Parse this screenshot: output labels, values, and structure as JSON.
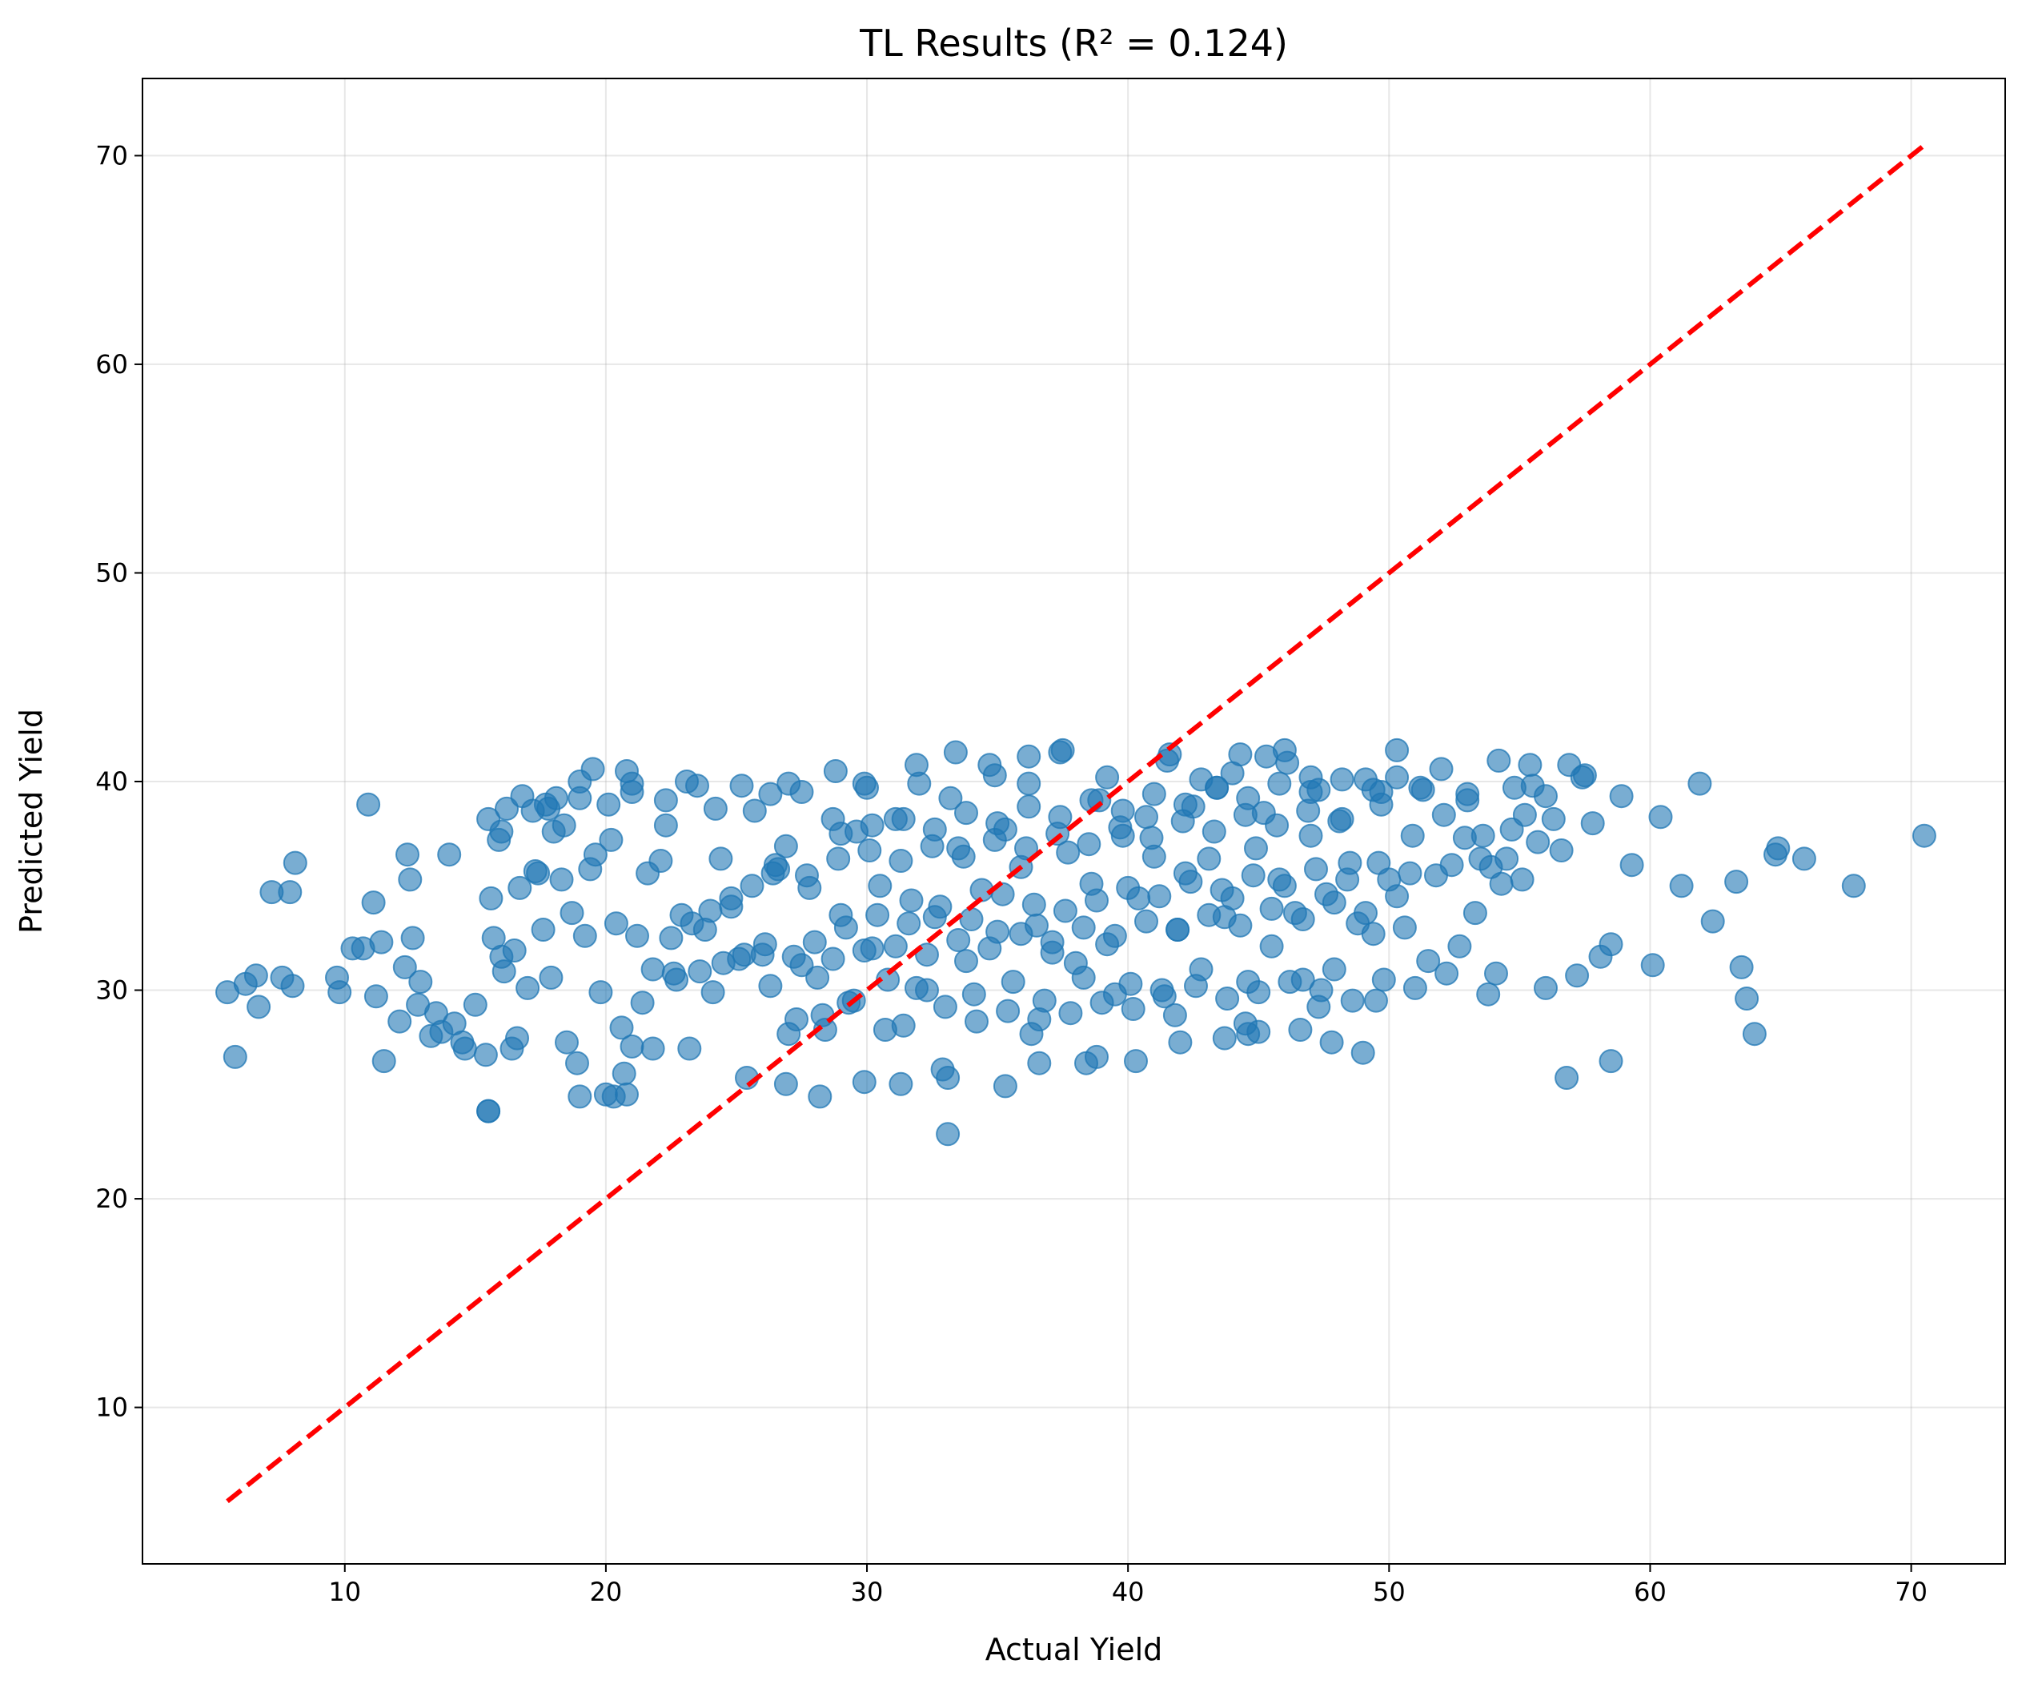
{
  "chart_data": {
    "type": "scatter",
    "title": "TL  Results (R² = 0.124)",
    "xlabel": "Actual Yield",
    "ylabel": "Predicted Yield",
    "xlim": [
      2.25,
      73.6
    ],
    "ylim": [
      2.5,
      73.7
    ],
    "xticks": [
      10,
      20,
      30,
      40,
      50,
      60,
      70
    ],
    "yticks": [
      10,
      20,
      30,
      40,
      50,
      60,
      70
    ],
    "grid": true,
    "colors": {
      "points": "#1f77b4",
      "reference_line": "#ff0000"
    },
    "reference_line": {
      "x": [
        5.5,
        70.5
      ],
      "y": [
        5.5,
        70.5
      ],
      "style": "dashed"
    },
    "series": [
      {
        "marker": "circle",
        "x": [
          5.5,
          5.8,
          6.2,
          6.6,
          7.2,
          7.6,
          7.9,
          8.0,
          8.1,
          6.7,
          9.7,
          9.8,
          10.3,
          10.7,
          10.9,
          11.1,
          11.2,
          11.4,
          11.5,
          12.1,
          12.3,
          12.4,
          12.5,
          12.6,
          12.8,
          12.9,
          13.3,
          13.5,
          13.7,
          14.0,
          14.2,
          14.5,
          14.6,
          15.0,
          15.4,
          15.5,
          15.6,
          15.7,
          15.9,
          16.0,
          16.1,
          16.2,
          16.4,
          16.5,
          16.6,
          16.7,
          17.0,
          17.2,
          17.4,
          17.6,
          17.7,
          17.9,
          18.0,
          18.1,
          18.3,
          18.5,
          18.7,
          18.9,
          19.0,
          19.2,
          19.4,
          19.6,
          19.8,
          20.0,
          20.2,
          20.4,
          20.6,
          20.8,
          21.0,
          21.2,
          21.4,
          21.6,
          21.8,
          22.1,
          22.3,
          22.6,
          22.9,
          23.2,
          23.5,
          23.8,
          24.1,
          24.4,
          24.8,
          25.1,
          25.4,
          25.7,
          26.0,
          26.3,
          26.6,
          26.9,
          27.2,
          27.5,
          27.8,
          28.1,
          28.4,
          28.7,
          29.0,
          29.3,
          29.6,
          29.9,
          30.2,
          30.5,
          30.8,
          31.1,
          31.4,
          31.7,
          32.0,
          32.3,
          32.6,
          32.9,
          33.2,
          33.5,
          33.8,
          34.1,
          34.4,
          34.7,
          35.0,
          35.3,
          35.6,
          35.9,
          36.2,
          36.5,
          36.8,
          37.1,
          37.4,
          37.7,
          38.0,
          38.3,
          38.6,
          38.9,
          39.2,
          39.5,
          39.8,
          40.1,
          40.4,
          40.7,
          41.0,
          41.3,
          41.6,
          41.9,
          42.2,
          42.5,
          42.8,
          43.1,
          43.4,
          43.7,
          44.0,
          44.3,
          44.6,
          44.9,
          45.2,
          45.5,
          45.8,
          46.1,
          46.4,
          46.7,
          47.0,
          47.3,
          47.6,
          47.9,
          48.2,
          48.5,
          48.8,
          49.1,
          49.4,
          49.7,
          50.0,
          50.3,
          50.6,
          50.9,
          51.2,
          51.5,
          51.8,
          52.1,
          52.4,
          52.7,
          53.0,
          53.3,
          53.6,
          53.9,
          54.2,
          54.5,
          54.8,
          55.1,
          55.4,
          55.7,
          56.0,
          56.3,
          56.6,
          56.9,
          57.2,
          57.5,
          57.8,
          58.1,
          58.5,
          58.9,
          59.3,
          60.1,
          60.4,
          61.2,
          61.9,
          62.4,
          63.3,
          63.5,
          63.7,
          64.0,
          64.8,
          64.9,
          65.9,
          67.8,
          70.5,
          33.1,
          15.5,
          19.0,
          20.3,
          20.8,
          28.2,
          26.9,
          29.9,
          31.3,
          33.1,
          35.3,
          36.6,
          38.4,
          40.3,
          42.0,
          43.7,
          45.0,
          46.6,
          47.8,
          49.0,
          56.8,
          58.5,
          20.7,
          21.0,
          27.3,
          36.3,
          38.8,
          41.8,
          44.6,
          44.5,
          47.3,
          49.5,
          53.8,
          54.1,
          54.3,
          52.9,
          51.3,
          50.3,
          49.7,
          47.0,
          46.0,
          45.3,
          44.0,
          42.8,
          41.5,
          39.2,
          37.5,
          36.2,
          34.9,
          33.4,
          31.9,
          30.0,
          28.8,
          27.0,
          26.3,
          25.2,
          24.2,
          23.1,
          22.3,
          21.0,
          20.1,
          19.5,
          19.0,
          18.4,
          17.8,
          17.3,
          16.8,
          16.0,
          15.5,
          27.0,
          28.3,
          29.5,
          30.7,
          31.9,
          33.0,
          34.2,
          35.4,
          36.6,
          37.8,
          39.0,
          40.2,
          41.4,
          42.6,
          43.8,
          45.0,
          46.2,
          47.4,
          48.6,
          49.8,
          51.0,
          52.2,
          28.0,
          29.2,
          30.4,
          31.6,
          32.8,
          34.0,
          35.2,
          36.4,
          37.6,
          38.8,
          40.0,
          41.2,
          42.4,
          43.6,
          44.8,
          46.0,
          47.2,
          48.4,
          49.6,
          50.8,
          27.5,
          28.7,
          29.9,
          31.1,
          32.3,
          33.5,
          34.7,
          35.9,
          37.1,
          38.3,
          39.5,
          40.7,
          41.9,
          43.1,
          44.3,
          45.5,
          46.7,
          47.9,
          49.1,
          50.3,
          29.0,
          30.2,
          31.4,
          32.6,
          33.8,
          35.0,
          36.2,
          37.4,
          38.6,
          39.8,
          41.0,
          42.2,
          43.4,
          44.6,
          45.8,
          47.0,
          48.2,
          49.4,
          26.5,
          27.7,
          28.9,
          30.1,
          31.3,
          32.5,
          33.7,
          34.9,
          36.1,
          37.3,
          38.5,
          39.7,
          40.9,
          42.1,
          43.3,
          44.5,
          45.7,
          46.9,
          48.1,
          22.5,
          23.3,
          24.0,
          24.8,
          25.6,
          26.4,
          21.8,
          22.7,
          23.6,
          24.5,
          25.3,
          26.1,
          53.5,
          54.7,
          55.2,
          56.0,
          57.4,
          52.0,
          53.0,
          55.5
        ],
        "y": [
          29.9,
          26.8,
          30.3,
          30.7,
          34.7,
          30.6,
          34.7,
          30.2,
          36.1,
          29.2,
          30.6,
          29.9,
          32.0,
          32.0,
          38.9,
          34.2,
          29.7,
          32.3,
          26.6,
          28.5,
          31.1,
          36.5,
          35.3,
          32.5,
          29.3,
          30.4,
          27.8,
          28.9,
          28.0,
          36.5,
          28.4,
          27.5,
          27.2,
          29.3,
          26.9,
          24.2,
          34.4,
          32.5,
          37.2,
          31.6,
          30.9,
          38.7,
          27.2,
          31.9,
          27.7,
          34.9,
          30.1,
          38.6,
          35.6,
          32.9,
          38.9,
          30.6,
          37.6,
          39.2,
          35.3,
          27.5,
          33.7,
          26.5,
          40.0,
          32.6,
          35.8,
          36.5,
          29.9,
          25.0,
          37.2,
          33.2,
          28.2,
          40.5,
          39.5,
          32.6,
          29.4,
          35.6,
          27.2,
          36.2,
          37.9,
          30.8,
          33.6,
          27.2,
          39.8,
          32.9,
          29.9,
          36.3,
          34.0,
          31.5,
          25.8,
          38.6,
          31.7,
          30.2,
          35.8,
          36.9,
          31.6,
          39.5,
          34.9,
          30.6,
          28.1,
          38.2,
          33.6,
          29.4,
          37.6,
          39.9,
          32.0,
          35.0,
          30.5,
          38.2,
          28.3,
          34.3,
          39.9,
          30.0,
          33.5,
          26.2,
          39.2,
          36.8,
          31.4,
          29.8,
          34.8,
          40.8,
          32.8,
          37.7,
          30.4,
          35.9,
          39.9,
          33.1,
          29.5,
          31.8,
          41.4,
          36.6,
          31.3,
          30.6,
          35.1,
          39.1,
          32.2,
          29.8,
          37.4,
          30.3,
          34.4,
          38.3,
          36.4,
          30.0,
          41.3,
          32.9,
          35.6,
          38.8,
          31.0,
          36.3,
          39.7,
          33.5,
          34.4,
          41.3,
          30.4,
          36.8,
          38.5,
          32.1,
          35.3,
          40.9,
          33.7,
          30.5,
          37.4,
          39.6,
          34.6,
          31.0,
          38.2,
          36.1,
          33.2,
          40.1,
          32.7,
          38.9,
          35.3,
          41.5,
          33.0,
          37.4,
          39.7,
          31.4,
          35.5,
          38.4,
          36.0,
          32.1,
          39.4,
          33.7,
          37.4,
          35.9,
          41.0,
          36.3,
          39.7,
          35.3,
          40.8,
          37.1,
          30.1,
          38.2,
          36.7,
          40.8,
          30.7,
          40.3,
          38.0,
          31.6,
          32.2,
          39.3,
          36.0,
          31.2,
          38.3,
          35.0,
          39.9,
          33.3,
          35.2,
          31.1,
          29.6,
          27.9,
          36.5,
          36.8,
          36.3,
          35.0,
          37.4,
          23.1,
          24.2,
          24.9,
          24.9,
          25.0,
          24.9,
          25.5,
          25.6,
          25.5,
          25.8,
          25.4,
          26.5,
          26.5,
          26.6,
          27.5,
          27.7,
          28.0,
          28.1,
          27.5,
          27.0,
          25.8,
          26.6,
          26.0,
          27.3,
          28.6,
          27.9,
          26.8,
          28.8,
          27.9,
          28.4,
          29.2,
          29.5,
          29.8,
          30.8,
          35.1,
          37.3,
          39.6,
          40.2,
          39.5,
          40.2,
          41.5,
          41.2,
          40.4,
          40.1,
          41.0,
          40.2,
          41.5,
          41.2,
          40.3,
          41.4,
          40.8,
          39.7,
          40.5,
          39.9,
          39.4,
          39.8,
          38.7,
          40.0,
          39.1,
          39.9,
          38.9,
          40.6,
          39.2,
          37.9,
          38.7,
          35.7,
          39.3,
          37.6,
          38.2,
          27.9,
          28.8,
          29.5,
          28.1,
          30.1,
          29.2,
          28.5,
          29.0,
          28.6,
          28.9,
          29.4,
          29.1,
          29.7,
          30.2,
          29.6,
          29.9,
          30.4,
          30.0,
          29.5,
          30.5,
          30.1,
          30.8,
          32.3,
          33.0,
          33.6,
          33.2,
          34.0,
          33.4,
          34.6,
          34.1,
          33.8,
          34.3,
          34.9,
          34.5,
          35.2,
          34.8,
          35.5,
          35.0,
          35.8,
          35.3,
          36.1,
          35.6,
          31.2,
          31.5,
          31.9,
          32.1,
          31.7,
          32.4,
          32.0,
          32.7,
          32.3,
          33.0,
          32.6,
          33.3,
          32.9,
          33.6,
          33.1,
          33.9,
          33.4,
          34.2,
          33.7,
          34.5,
          37.5,
          37.9,
          38.2,
          37.7,
          38.5,
          38.0,
          38.8,
          38.3,
          39.1,
          38.6,
          39.4,
          38.9,
          39.7,
          39.2,
          39.9,
          39.5,
          40.1,
          39.6,
          36.0,
          35.5,
          36.3,
          36.7,
          36.2,
          36.9,
          36.4,
          37.2,
          36.8,
          37.5,
          37.0,
          37.8,
          37.3,
          38.1,
          37.6,
          38.4,
          37.9,
          38.6,
          38.1,
          32.5,
          33.2,
          33.8,
          34.4,
          35.0,
          35.6,
          31.0,
          30.5,
          30.9,
          31.3,
          31.7,
          32.2,
          36.3,
          37.7,
          38.4,
          39.3,
          40.2,
          40.6,
          39.1,
          39.8
        ]
      }
    ]
  }
}
